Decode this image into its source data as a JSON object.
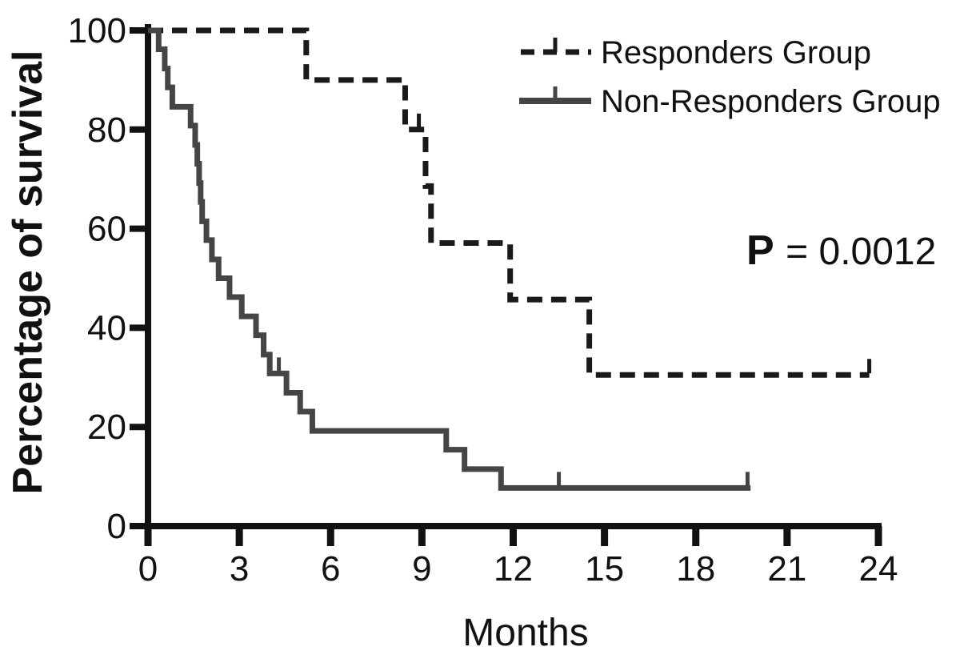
{
  "figure": {
    "background_color": "#ffffff"
  },
  "chart_data": {
    "type": "line",
    "subtype": "kaplan-meier-survival-step",
    "title": "",
    "xlabel": "Months",
    "ylabel": "Percentage of survival",
    "xlim": [
      0,
      24
    ],
    "ylim": [
      0,
      100
    ],
    "x_ticks": [
      0,
      3,
      6,
      9,
      12,
      15,
      18,
      21,
      24
    ],
    "y_ticks": [
      0,
      20,
      40,
      60,
      80,
      100
    ],
    "grid": false,
    "legend_position": "top-right",
    "annotation": {
      "label": "P",
      "value": "= 0.0012"
    },
    "colors": {
      "responders_line": "#1a1a1a",
      "non_responders_line": "#454545",
      "axis": "#111111",
      "background": "#ffffff"
    },
    "series": [
      {
        "name": "Responders Group",
        "style": "dashed",
        "color": "#1a1a1a",
        "steps": [
          [
            0,
            100
          ],
          [
            5.2,
            90
          ],
          [
            8.45,
            80
          ],
          [
            9.12,
            68.6
          ],
          [
            9.3,
            57.1
          ],
          [
            11.9,
            45.7
          ],
          [
            14.5,
            30.5
          ]
        ],
        "end_time": 23.7,
        "censor_marks": [
          [
            8.9,
            80
          ],
          [
            23.7,
            30.5
          ]
        ]
      },
      {
        "name": "Non-Responders Group",
        "style": "solid",
        "color": "#454545",
        "steps": [
          [
            0,
            100
          ],
          [
            0.35,
            96.2
          ],
          [
            0.55,
            92.3
          ],
          [
            0.65,
            88.5
          ],
          [
            0.8,
            84.6
          ],
          [
            1.4,
            80.8
          ],
          [
            1.55,
            76.9
          ],
          [
            1.62,
            73.1
          ],
          [
            1.68,
            69.2
          ],
          [
            1.73,
            65.4
          ],
          [
            1.78,
            61.5
          ],
          [
            1.92,
            57.7
          ],
          [
            2.1,
            53.8
          ],
          [
            2.32,
            50.0
          ],
          [
            2.68,
            46.2
          ],
          [
            3.08,
            42.3
          ],
          [
            3.55,
            38.5
          ],
          [
            3.8,
            34.6
          ],
          [
            4.0,
            30.8
          ],
          [
            4.55,
            26.9
          ],
          [
            5.0,
            23.1
          ],
          [
            5.4,
            19.2
          ],
          [
            9.8,
            15.4
          ],
          [
            10.4,
            11.5
          ],
          [
            11.6,
            7.7
          ]
        ],
        "end_time": 19.8,
        "censor_marks": [
          [
            4.3,
            30.8
          ],
          [
            13.5,
            7.7
          ],
          [
            19.7,
            7.7
          ]
        ]
      }
    ]
  }
}
